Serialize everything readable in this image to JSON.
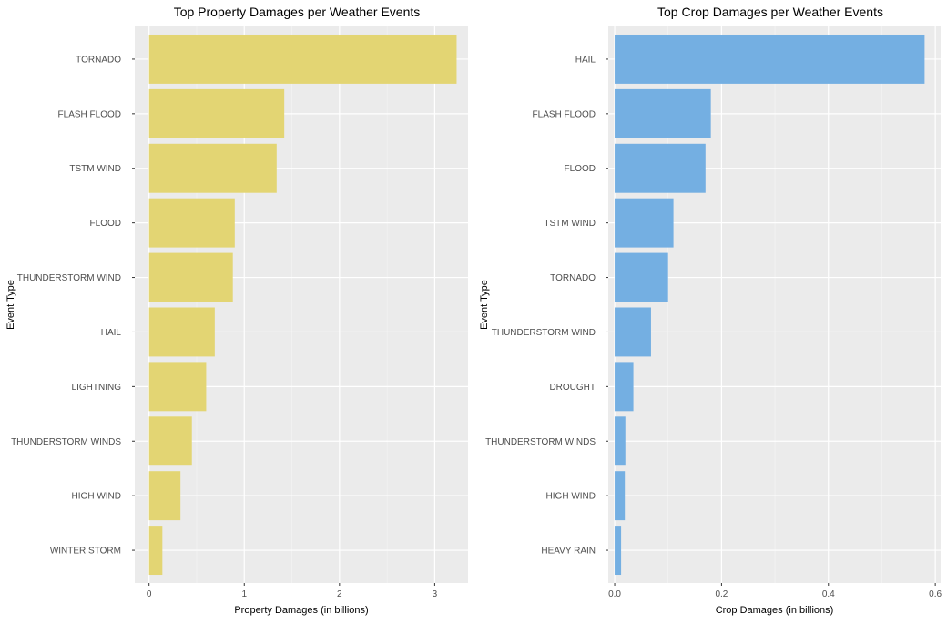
{
  "chart_data": [
    {
      "type": "bar",
      "orientation": "horizontal",
      "title": "Top Property Damages per Weather Events",
      "xlabel": "Property Damages (in billions)",
      "ylabel": "Event Type",
      "categories": [
        "TORNADO",
        "FLASH FLOOD",
        "TSTM WIND",
        "FLOOD",
        "THUNDERSTORM WIND",
        "HAIL",
        "LIGHTNING",
        "THUNDERSTORM WINDS",
        "HIGH WIND",
        "WINTER STORM"
      ],
      "values": [
        3.23,
        1.42,
        1.34,
        0.9,
        0.88,
        0.69,
        0.6,
        0.45,
        0.33,
        0.14
      ],
      "xlim": [
        -0.15,
        3.35
      ],
      "xticks": [
        0,
        1,
        2,
        3
      ],
      "xtick_labels": [
        "0",
        "1",
        "2",
        "3"
      ],
      "grid": true,
      "color": "#E3D573"
    },
    {
      "type": "bar",
      "orientation": "horizontal",
      "title": "Top Crop Damages per Weather Events",
      "xlabel": "Crop Damages (in billions)",
      "ylabel": "Event Type",
      "categories": [
        "HAIL",
        "FLASH FLOOD",
        "FLOOD",
        "TSTM WIND",
        "TORNADO",
        "THUNDERSTORM WIND",
        "DROUGHT",
        "THUNDERSTORM WINDS",
        "HIGH WIND",
        "HEAVY RAIN"
      ],
      "values": [
        0.58,
        0.18,
        0.17,
        0.11,
        0.1,
        0.068,
        0.035,
        0.02,
        0.019,
        0.012
      ],
      "xlim": [
        -0.012,
        0.61
      ],
      "xticks": [
        0,
        0.2,
        0.4,
        0.6
      ],
      "xtick_labels": [
        "0.0",
        "0.2",
        "0.4",
        "0.6"
      ],
      "grid": true,
      "color": "#74AFE2"
    }
  ]
}
